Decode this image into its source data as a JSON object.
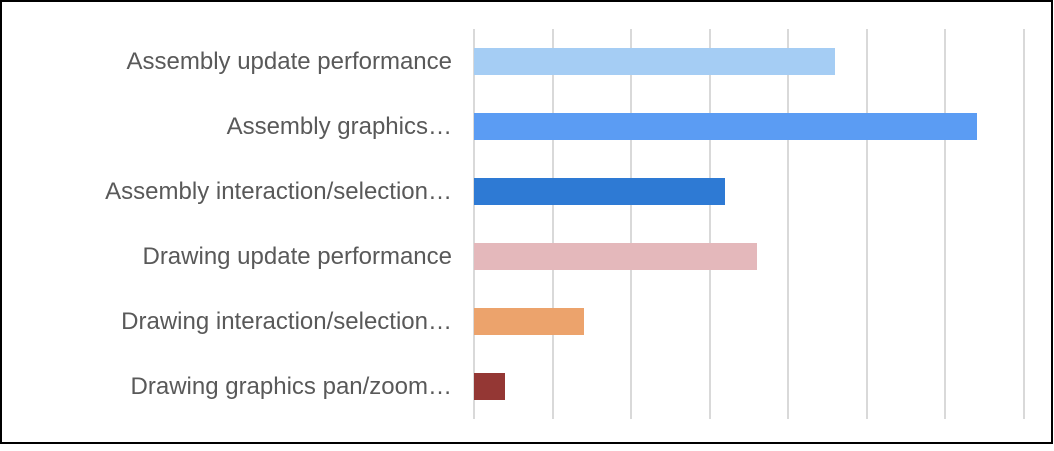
{
  "chart_data": {
    "type": "bar",
    "orientation": "horizontal",
    "title": "",
    "xlabel": "",
    "ylabel": "",
    "categories": [
      "Assembly update performance",
      "Assembly graphics…",
      "Assembly interaction/selection…",
      "Drawing update performance",
      "Drawing interaction/selection…",
      "Drawing graphics pan/zoom…"
    ],
    "values": [
      4.6,
      6.4,
      3.2,
      3.6,
      1.4,
      0.4
    ],
    "bar_colors": [
      "#a5cdf4",
      "#5b9cf3",
      "#2e7ad4",
      "#e4b8bb",
      "#eca36c",
      "#943734"
    ],
    "xlim": [
      0,
      7
    ],
    "gridline_interval": 1,
    "grid": "vertical-gridlines-only",
    "axis_tick_labels": "none",
    "legend_position": "none"
  },
  "styles": {
    "background_color": "#ffffff",
    "border_color": "#000000",
    "gridline_color": "#d9d9d9",
    "label_color": "#595959"
  }
}
